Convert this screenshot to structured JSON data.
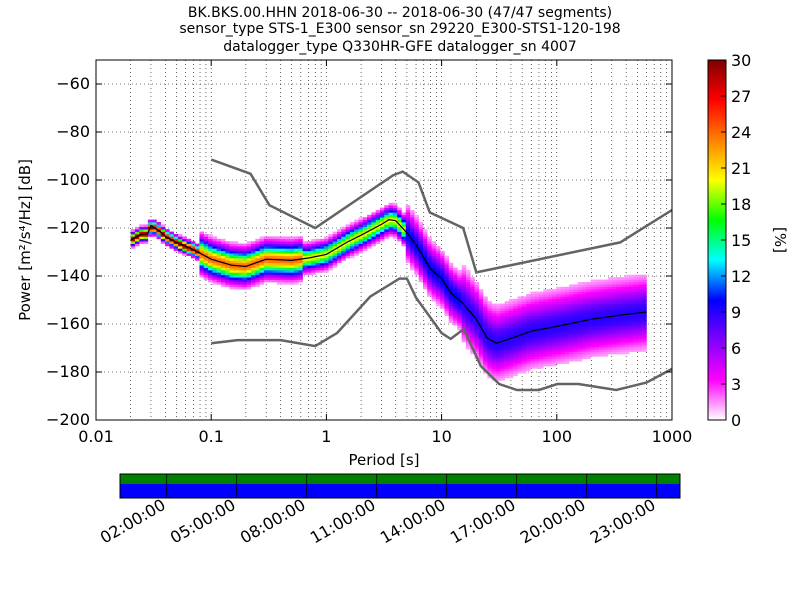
{
  "title_lines": [
    "BK.BKS.00.HHN   2018-06-30 -- 2018-06-30  (47/47 segments)",
    "sensor_type STS-1_E300 sensor_sn 29220_E300-STS1-120-198",
    "datalogger_type Q330HR-GFE datalogger_sn 4007"
  ],
  "colorbar": {
    "label": "[%]",
    "ticks": [
      "0",
      "3",
      "6",
      "9",
      "12",
      "15",
      "18",
      "21",
      "24",
      "27",
      "30"
    ],
    "range": [
      0,
      30
    ],
    "colors": [
      "#ffffff",
      "#ff00ff",
      "#8000ff",
      "#0000ff",
      "#00ffff",
      "#00ff00",
      "#ffff00",
      "#ff8000",
      "#ff0000",
      "#800000"
    ]
  },
  "timeline": {
    "tick_labels": [
      "02:00:00",
      "05:00:00",
      "08:00:00",
      "11:00:00",
      "14:00:00",
      "17:00:00",
      "20:00:00",
      "23:00:00"
    ],
    "tick_hours": [
      2,
      5,
      8,
      11,
      14,
      17,
      20,
      23
    ],
    "range_hours": [
      0,
      24
    ],
    "top_color": "#008000",
    "bottom_color": "#0000ff"
  },
  "chart_data": {
    "type": "heatmap",
    "xlabel": "Period [s]",
    "ylabel": "Power [m²/s⁴/Hz] [dB]",
    "x_scale": "log",
    "xlim": [
      0.01,
      1000
    ],
    "ylim": [
      -200,
      -50
    ],
    "x_ticks": [
      {
        "value": 0.01,
        "label": "0.01"
      },
      {
        "value": 0.1,
        "label": "0.1"
      },
      {
        "value": 1,
        "label": "1"
      },
      {
        "value": 10,
        "label": "10"
      },
      {
        "value": 100,
        "label": "100"
      },
      {
        "value": 1000,
        "label": "1000"
      }
    ],
    "y_ticks": [
      {
        "value": -60,
        "label": "−60"
      },
      {
        "value": -80,
        "label": "−80"
      },
      {
        "value": -100,
        "label": "−100"
      },
      {
        "value": -120,
        "label": "−120"
      },
      {
        "value": -140,
        "label": "−140"
      },
      {
        "value": -160,
        "label": "−160"
      },
      {
        "value": -180,
        "label": "−180"
      },
      {
        "value": -200,
        "label": "−200"
      }
    ],
    "grid": "dotted",
    "nhnm": {
      "x": [
        0.1,
        0.22,
        0.32,
        0.8,
        3.8,
        4.6,
        6.3,
        7.9,
        15.4,
        20,
        354.8,
        1000
      ],
      "y": [
        -91.5,
        -97.4,
        -110.5,
        -120,
        -98,
        -96.5,
        -101,
        -113.5,
        -120,
        -138.5,
        -126,
        -112.5
      ]
    },
    "nlnm": {
      "x": [
        0.1,
        0.17,
        0.4,
        0.8,
        1.24,
        2.4,
        4.3,
        5,
        6,
        10,
        12,
        15.6,
        21.9,
        31.6,
        45,
        70,
        101,
        154,
        328,
        600,
        1000
      ],
      "y": [
        -168,
        -166.7,
        -166.7,
        -169.2,
        -163.7,
        -148.6,
        -141.1,
        -141.1,
        -149,
        -163.8,
        -166.2,
        -162.1,
        -177.5,
        -185,
        -187.5,
        -187.5,
        -185,
        -185,
        -187.5,
        -184.4,
        -178.7
      ]
    },
    "mode_curve": {
      "x": [
        0.02,
        0.025,
        0.028,
        0.03,
        0.035,
        0.04,
        0.05,
        0.07,
        0.1,
        0.15,
        0.2,
        0.3,
        0.5,
        0.7,
        1,
        1.5,
        2,
        3,
        3.5,
        4,
        5,
        6,
        8,
        10,
        12,
        15,
        20,
        25,
        30,
        40,
        60,
        100,
        200,
        400,
        600
      ],
      "y": [
        -125,
        -122.5,
        -122.5,
        -119,
        -121,
        -123.5,
        -126,
        -129,
        -133,
        -135.5,
        -136,
        -133,
        -133.5,
        -132.5,
        -131,
        -126,
        -123,
        -118.5,
        -116.5,
        -117,
        -122,
        -127,
        -137,
        -141,
        -147,
        -151,
        -158,
        -166,
        -168,
        -166,
        -163,
        -161,
        -158,
        -156,
        -155
      ]
    },
    "color_scale": {
      "min": 0,
      "max": 30,
      "unit": "%"
    }
  }
}
